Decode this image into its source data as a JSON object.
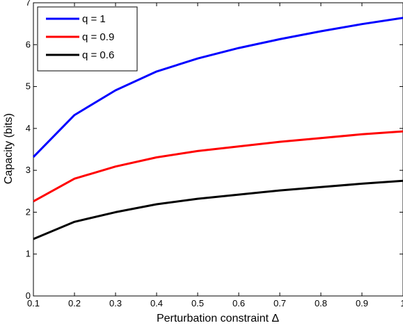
{
  "chart_data": {
    "type": "line",
    "title": "",
    "xlabel": "Perturbation constraint Δ",
    "ylabel": "Capacity (bits)",
    "xlim": [
      0.1,
      1.0
    ],
    "ylim": [
      0,
      7
    ],
    "x": [
      0.1,
      0.2,
      0.3,
      0.4,
      0.5,
      0.6,
      0.7,
      0.8,
      0.9,
      1.0
    ],
    "xticks": [
      "0.1",
      "0.2",
      "0.3",
      "0.4",
      "0.5",
      "0.6",
      "0.7",
      "0.8",
      "0.9",
      "1"
    ],
    "yticks": [
      "0",
      "1",
      "2",
      "3",
      "4",
      "5",
      "6",
      "7"
    ],
    "grid": false,
    "legend_position": "top-left",
    "series": [
      {
        "name": "q = 1",
        "color": "#0000ff",
        "values": [
          3.32,
          4.32,
          4.91,
          5.36,
          5.67,
          5.92,
          6.13,
          6.32,
          6.49,
          6.64
        ]
      },
      {
        "name": "q = 0.9",
        "color": "#ff0000",
        "values": [
          2.26,
          2.8,
          3.09,
          3.31,
          3.46,
          3.57,
          3.68,
          3.77,
          3.86,
          3.93
        ]
      },
      {
        "name": "q = 0.6",
        "color": "#000000",
        "values": [
          1.36,
          1.77,
          2.0,
          2.19,
          2.32,
          2.42,
          2.52,
          2.6,
          2.68,
          2.75
        ]
      }
    ]
  }
}
